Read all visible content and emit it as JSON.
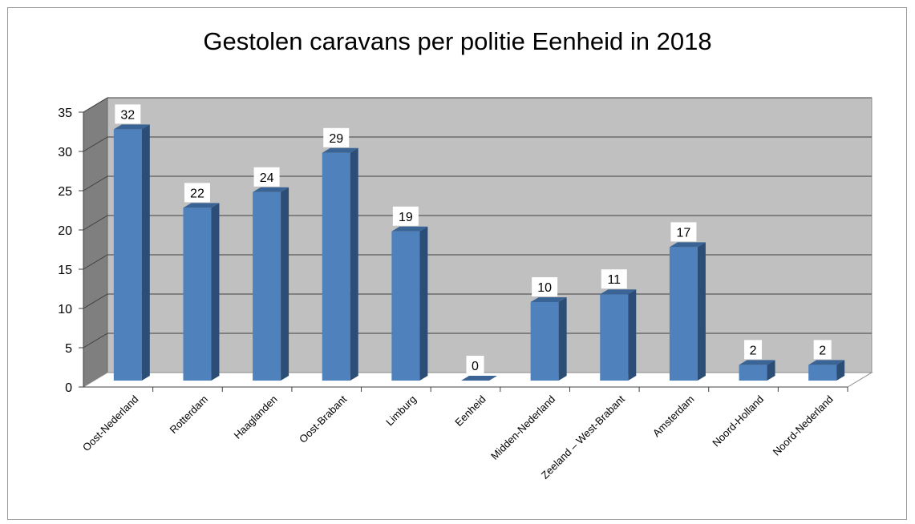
{
  "chart_data": {
    "type": "bar",
    "title": "Gestolen caravans per politie Eenheid in 2018",
    "categories": [
      "Oost-Nederland",
      "Rotterdam",
      "Haaglanden",
      "Oost-Brabant",
      "Limburg",
      "Eenheid",
      "Midden-Nederland",
      "Zeeland – West-Brabant",
      "Amsterdam",
      "Noord-Holland",
      "Noord-Nederland"
    ],
    "values": [
      32,
      22,
      24,
      29,
      19,
      0,
      10,
      11,
      17,
      2,
      2
    ],
    "ylim": [
      0,
      35
    ],
    "yticks": [
      "0",
      "5",
      "10",
      "15",
      "20",
      "25",
      "30",
      "35"
    ],
    "grid": true,
    "legend": "none",
    "style": "3d-column"
  },
  "colors": {
    "bar_front": "#4f81bd",
    "bar_side": "#2c4d75",
    "bar_top": "#3a6496",
    "back_wall": "#c0c0c0",
    "side_wall": "#7f7f7f",
    "floor": "#ffffff",
    "gridline": "#404040"
  }
}
